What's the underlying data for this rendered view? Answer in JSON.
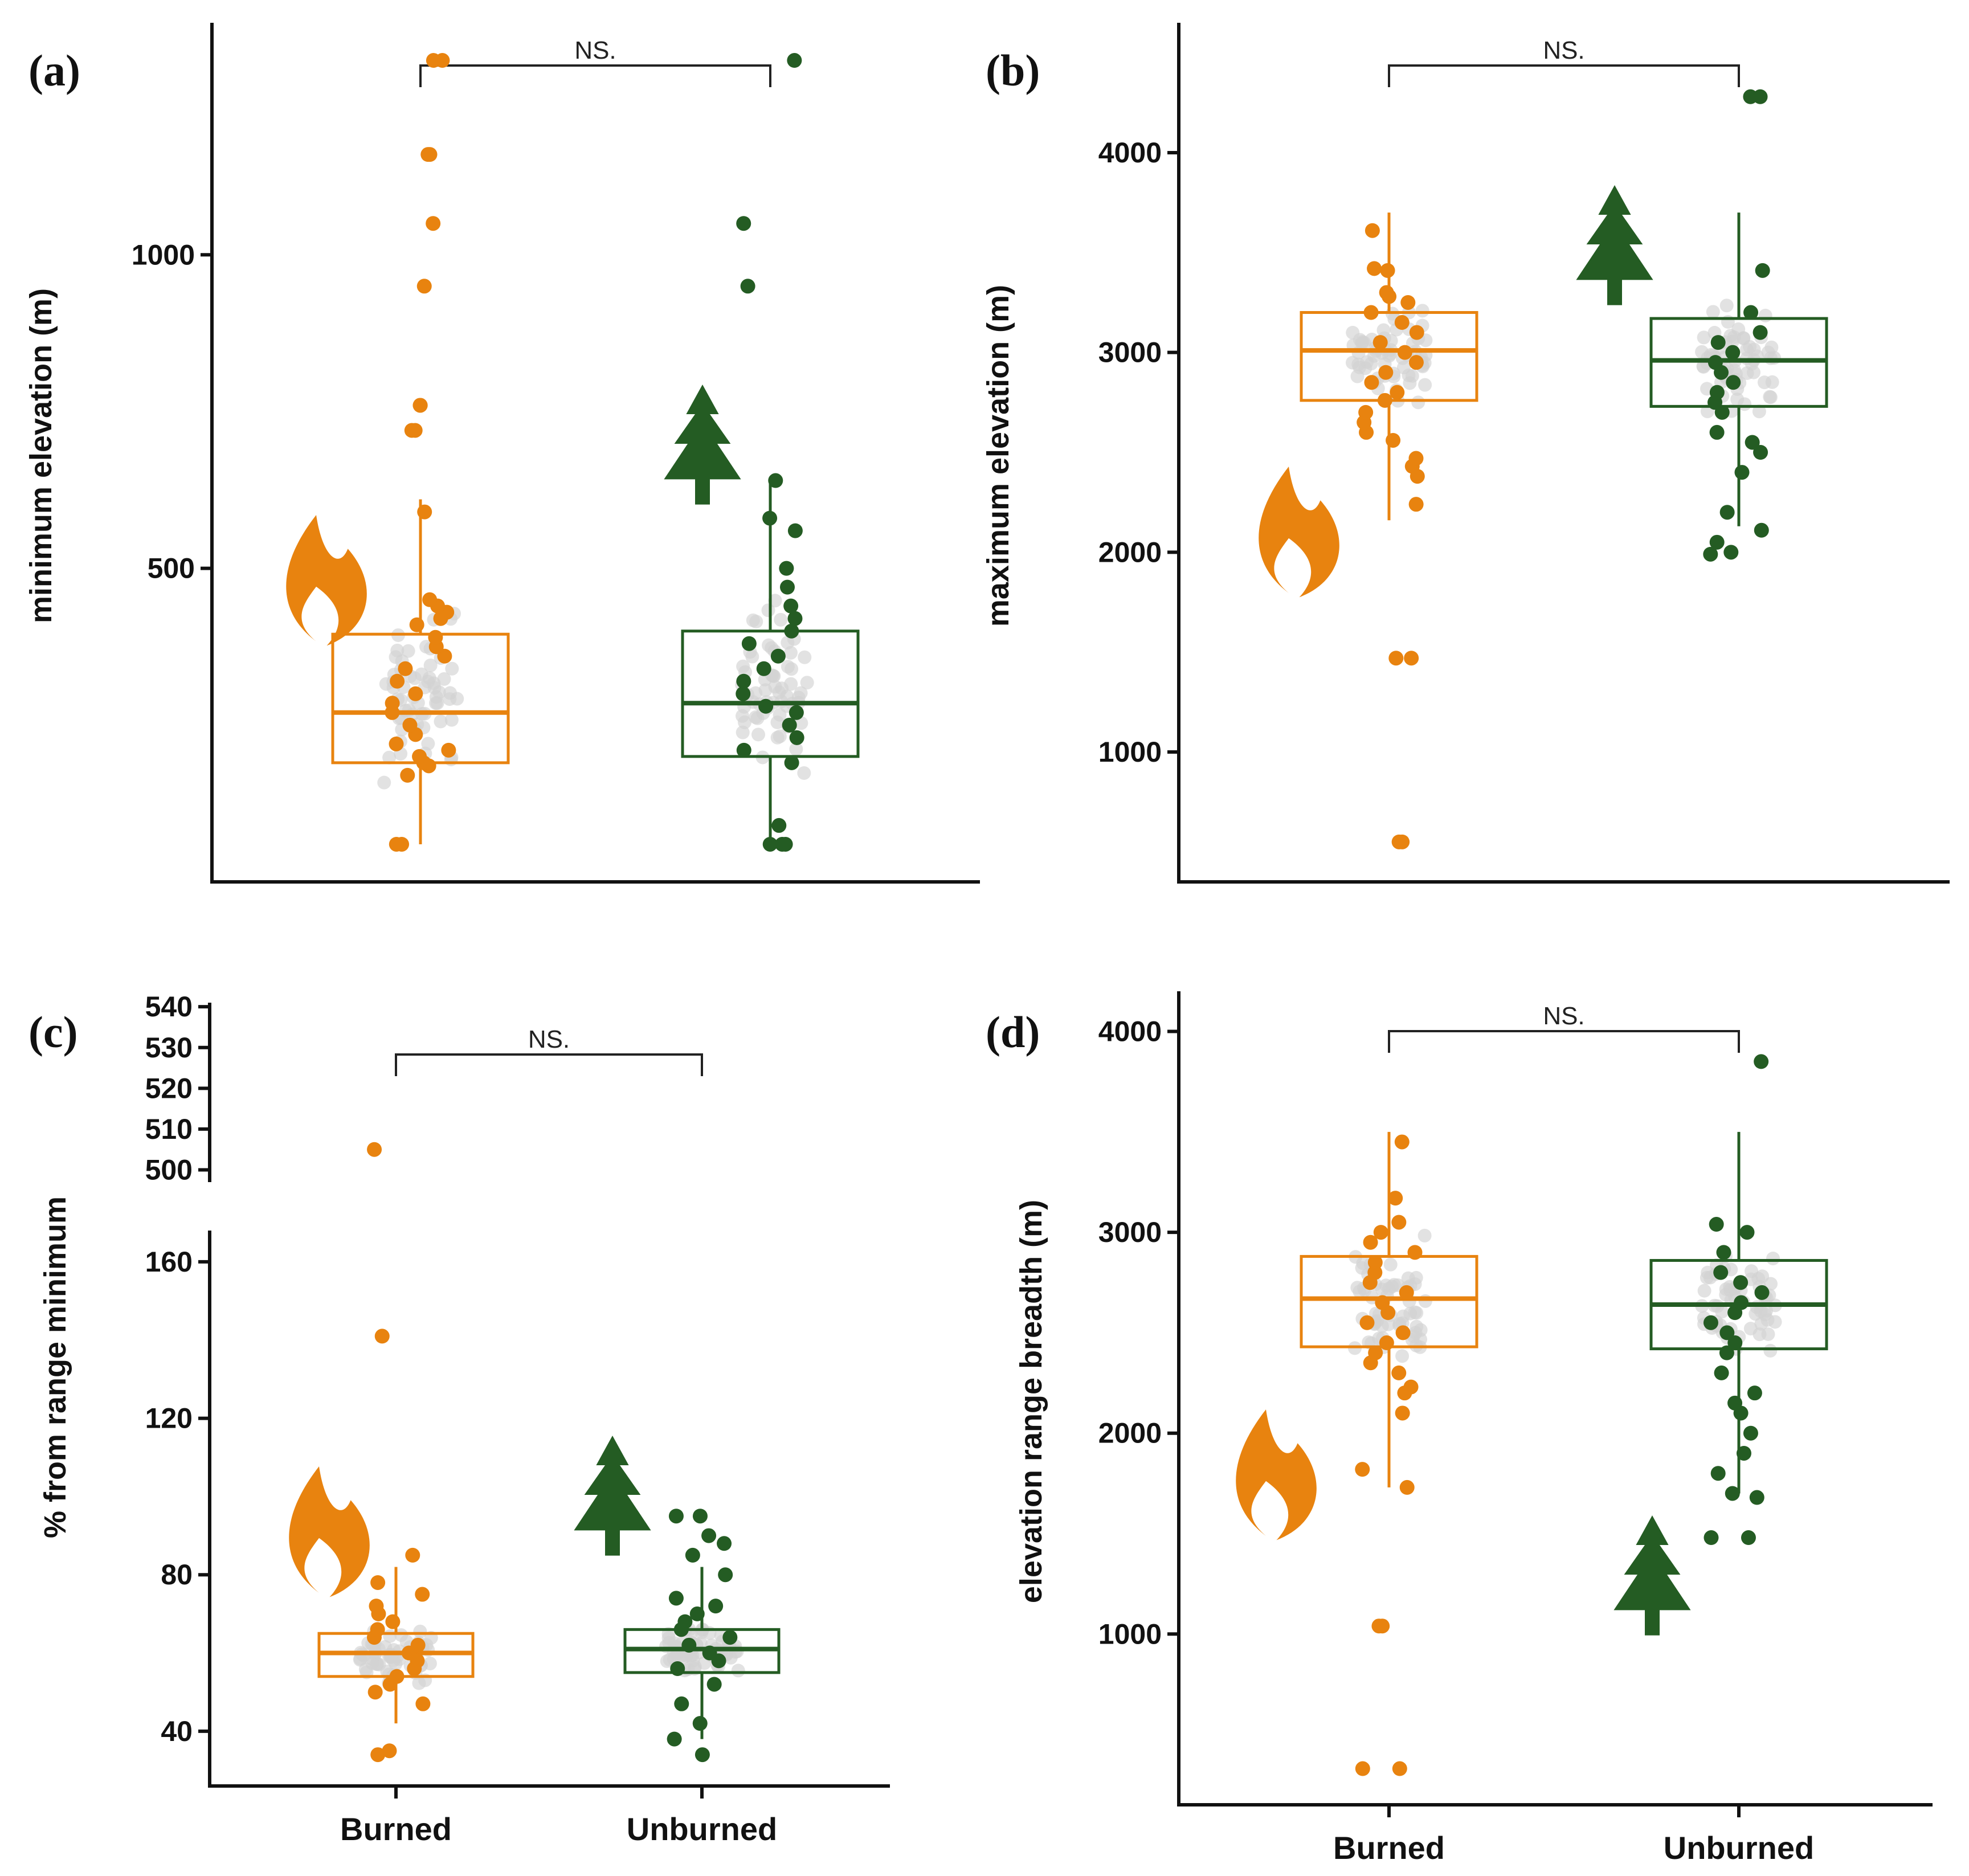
{
  "figure": {
    "categories": [
      "Burned",
      "Unburned"
    ],
    "colors": {
      "Burned": "#e8830f",
      "Unburned": "#245c23",
      "gray": "#d3d3d3"
    },
    "icons": {
      "Burned": "flame-icon",
      "Unburned": "tree-icon"
    }
  },
  "chart_data": [
    {
      "panel": "(a)",
      "type": "box-strip",
      "ylabel": "minimum elevation (m)",
      "ylim": [
        0,
        1370
      ],
      "yticks": [
        500,
        1000
      ],
      "categories": [
        "Burned",
        "Unburned"
      ],
      "show_x_labels": false,
      "significance": "NS.",
      "boxes": [
        {
          "name": "Burned",
          "q1": 190,
          "median": 270,
          "q3": 395,
          "whisker_low": 60,
          "whisker_high": 610
        },
        {
          "name": "Unburned",
          "q1": 200,
          "median": 285,
          "q3": 400,
          "whisker_low": 60,
          "whisker_high": 640
        }
      ],
      "points": [
        [
          60,
          60,
          170,
          185,
          190,
          200,
          210,
          220,
          235,
          250,
          270,
          285,
          300,
          320,
          340,
          360,
          375,
          390,
          410,
          420,
          430,
          440,
          450,
          590,
          720,
          720,
          760,
          760,
          950,
          1050,
          1160,
          1160,
          1310,
          1310
        ],
        [
          60,
          60,
          60,
          90,
          190,
          210,
          230,
          250,
          270,
          280,
          300,
          320,
          340,
          360,
          380,
          400,
          420,
          440,
          470,
          500,
          560,
          580,
          640,
          950,
          1050,
          1310
        ]
      ]
    },
    {
      "panel": "(b)",
      "type": "box-strip",
      "ylabel": "maximum elevation (m)",
      "ylim": [
        350,
        4650
      ],
      "yticks": [
        1000,
        2000,
        3000,
        4000
      ],
      "categories": [
        "Burned",
        "Unburned"
      ],
      "show_x_labels": false,
      "significance": "NS.",
      "boxes": [
        {
          "name": "Burned",
          "q1": 2760,
          "median": 3010,
          "q3": 3200,
          "whisker_low": 2160,
          "whisker_high": 3700
        },
        {
          "name": "Unburned",
          "q1": 2730,
          "median": 2960,
          "q3": 3170,
          "whisker_low": 2130,
          "whisker_high": 3700
        }
      ],
      "points": [
        [
          550,
          550,
          1470,
          1470,
          2240,
          2380,
          2430,
          2470,
          2560,
          2600,
          2650,
          2700,
          2760,
          2800,
          2850,
          2900,
          2950,
          3000,
          3050,
          3100,
          3150,
          3200,
          3250,
          3280,
          3300,
          3410,
          3420,
          3610
        ],
        [
          1990,
          2000,
          2050,
          2110,
          2200,
          2400,
          2500,
          2550,
          2600,
          2700,
          2750,
          2800,
          2850,
          2900,
          2950,
          3000,
          3050,
          3100,
          3200,
          3410,
          4280,
          4280
        ]
      ]
    },
    {
      "panel": "(c)",
      "type": "box-strip-broken-axis",
      "ylabel": "% from range minimum",
      "ylim_lower": [
        26,
        168
      ],
      "ylim_upper": [
        497,
        541
      ],
      "yticks_lower": [
        40,
        80,
        120,
        160
      ],
      "yticks_upper": [
        500,
        510,
        520,
        530,
        540
      ],
      "categories": [
        "Burned",
        "Unburned"
      ],
      "show_x_labels": true,
      "significance": "NS.",
      "boxes": [
        {
          "name": "Burned",
          "q1": 54,
          "median": 60,
          "q3": 65,
          "whisker_low": 42,
          "whisker_high": 82
        },
        {
          "name": "Unburned",
          "q1": 55,
          "median": 61,
          "q3": 66,
          "whisker_low": 38,
          "whisker_high": 82
        }
      ],
      "points": [
        [
          34,
          35,
          47,
          50,
          52,
          54,
          56,
          58,
          60,
          62,
          64,
          66,
          68,
          70,
          72,
          75,
          78,
          85,
          141,
          505
        ],
        [
          34,
          38,
          42,
          47,
          52,
          56,
          58,
          60,
          62,
          64,
          66,
          68,
          70,
          72,
          74,
          80,
          85,
          88,
          90,
          95,
          95
        ]
      ]
    },
    {
      "panel": "(d)",
      "type": "box-strip",
      "ylabel": "elevation range breadth (m)",
      "ylim": [
        150,
        4200
      ],
      "yticks": [
        1000,
        2000,
        3000,
        4000
      ],
      "categories": [
        "Burned",
        "Unburned"
      ],
      "show_x_labels": true,
      "significance": "NS.",
      "boxes": [
        {
          "name": "Burned",
          "q1": 2430,
          "median": 2670,
          "q3": 2880,
          "whisker_low": 1730,
          "whisker_high": 3500
        },
        {
          "name": "Unburned",
          "q1": 2420,
          "median": 2640,
          "q3": 2860,
          "whisker_low": 1700,
          "whisker_high": 3500
        }
      ],
      "points": [
        [
          330,
          330,
          1040,
          1040,
          1730,
          1820,
          2100,
          2200,
          2230,
          2300,
          2350,
          2400,
          2450,
          2500,
          2550,
          2600,
          2650,
          2700,
          2750,
          2800,
          2850,
          2900,
          2950,
          3000,
          3050,
          3170,
          3450
        ],
        [
          1480,
          1480,
          1680,
          1700,
          1800,
          1900,
          2000,
          2100,
          2150,
          2200,
          2300,
          2400,
          2450,
          2500,
          2550,
          2600,
          2650,
          2700,
          2750,
          2800,
          2900,
          3000,
          3040,
          3850
        ]
      ]
    }
  ]
}
